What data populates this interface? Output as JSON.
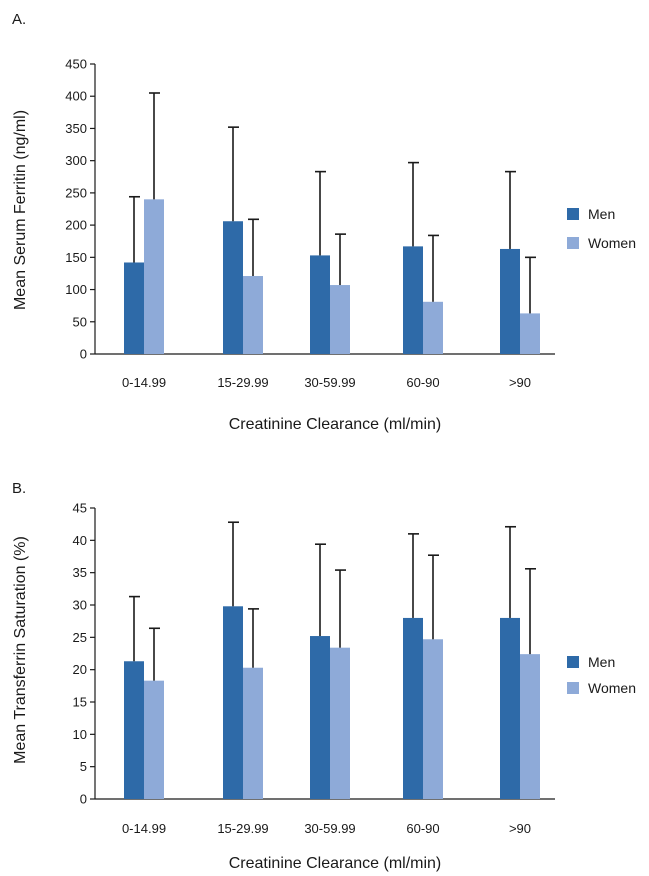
{
  "chart_data": [
    {
      "type": "bar",
      "panel_label": "A.",
      "categories": [
        "0-14.99",
        "15-29.99",
        "30-59.99",
        "60-90",
        ">90"
      ],
      "series": [
        {
          "name": "Men",
          "color": "#2e6aa8",
          "values": [
            142,
            206,
            153,
            167,
            163
          ],
          "error_upper": [
            244,
            352,
            283,
            297,
            283
          ]
        },
        {
          "name": "Women",
          "color": "#8eaad8",
          "values": [
            240,
            121,
            107,
            81,
            63
          ],
          "error_upper": [
            405,
            209,
            186,
            184,
            150
          ]
        }
      ],
      "xlabel": "Creatinine Clearance (ml/min)",
      "ylabel": "Mean Serum Ferritin (ng/ml)",
      "ylim": [
        0,
        450
      ],
      "yticks": [
        0,
        50,
        100,
        150,
        200,
        250,
        300,
        350,
        400,
        450
      ],
      "legend": "right",
      "grid": false
    },
    {
      "type": "bar",
      "panel_label": "B.",
      "categories": [
        "0-14.99",
        "15-29.99",
        "30-59.99",
        "60-90",
        ">90"
      ],
      "series": [
        {
          "name": "Men",
          "color": "#2e6aa8",
          "values": [
            21.3,
            29.8,
            25.2,
            28.0,
            28.0
          ],
          "error_upper": [
            31.3,
            42.8,
            39.4,
            41.0,
            42.1
          ]
        },
        {
          "name": "Women",
          "color": "#8eaad8",
          "values": [
            18.3,
            20.3,
            23.4,
            24.7,
            22.4
          ],
          "error_upper": [
            26.4,
            29.4,
            35.4,
            37.7,
            35.6
          ]
        }
      ],
      "xlabel": "Creatinine Clearance (ml/min)",
      "ylabel": "Mean Transferrin Saturation (%)",
      "ylim": [
        0,
        45
      ],
      "yticks": [
        0,
        5,
        10,
        15,
        20,
        25,
        30,
        35,
        40,
        45
      ],
      "legend": "right",
      "grid": false
    }
  ]
}
